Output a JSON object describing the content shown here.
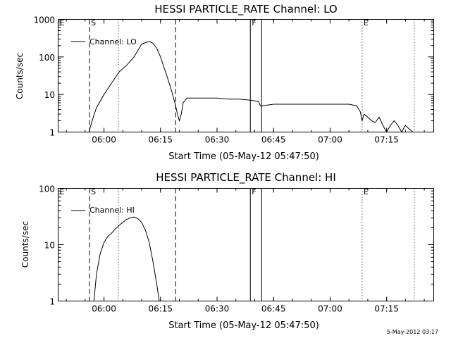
{
  "footer": {
    "timestamp": "5-May-2012 03:17"
  },
  "chart_data": [
    {
      "type": "line",
      "title": "HESSI PARTICLE_RATE Channel: LO",
      "xlabel": "Start Time (05-May-12 05:47:50)",
      "ylabel": "Counts/sec",
      "yscale": "log",
      "xlim": [
        "05:47:50",
        "07:27:30"
      ],
      "ylim": [
        1,
        1000
      ],
      "x_ticks": [
        "06:00",
        "06:15",
        "06:30",
        "06:45",
        "07:00",
        "07:15"
      ],
      "y_ticks": [
        "1",
        "10",
        "100",
        "1000"
      ],
      "legend": {
        "position": "top-left",
        "entry": "Channel: LO"
      },
      "markers": [
        {
          "label": "E",
          "time": "05:47:50",
          "style": "none"
        },
        {
          "label": "S",
          "time": "05:56:10",
          "style": "dashed"
        },
        {
          "label": "",
          "time": "06:03:50",
          "style": "dotted"
        },
        {
          "label": "",
          "time": "06:19:00",
          "style": "dashed"
        },
        {
          "label": "F",
          "time": "06:38:50",
          "style": "solid"
        },
        {
          "label": "",
          "time": "06:41:50",
          "style": "solid"
        },
        {
          "label": "E",
          "time": "07:08:30",
          "style": "dotted"
        },
        {
          "label": "",
          "time": "07:22:20",
          "style": "dotted"
        }
      ],
      "series": [
        {
          "name": "Channel: LO",
          "x": [
            "05:56:00",
            "05:57:00",
            "05:58:00",
            "06:00:00",
            "06:02:00",
            "06:04:00",
            "06:06:00",
            "06:08:00",
            "06:09:00",
            "06:10:00",
            "06:11:00",
            "06:12:00",
            "06:13:00",
            "06:14:00",
            "06:15:00",
            "06:16:00",
            "06:17:00",
            "06:18:00",
            "06:19:00",
            "06:19:30",
            "06:20:00",
            "06:20:30",
            "06:21:00",
            "06:22:00",
            "06:24:00",
            "06:27:00",
            "06:30:00",
            "06:33:00",
            "06:36:00",
            "06:39:00",
            "06:41:00",
            "06:41:30",
            "06:42:00",
            "06:45:00",
            "06:50:00",
            "06:55:00",
            "07:00:00",
            "07:05:00",
            "07:07:00",
            "07:08:00",
            "07:08:30",
            "07:09:00",
            "07:10:00",
            "07:11:00",
            "07:12:00",
            "07:13:00",
            "07:14:00",
            "07:15:00",
            "07:16:00",
            "07:17:00",
            "07:18:00",
            "07:19:00",
            "07:20:00",
            "07:21:00",
            "07:22:00"
          ],
          "y": [
            1,
            2.2,
            4.5,
            10,
            20,
            40,
            60,
            100,
            150,
            220,
            240,
            260,
            230,
            170,
            100,
            50,
            25,
            12,
            5,
            3,
            2,
            3,
            6,
            8,
            8,
            8,
            8,
            7.5,
            7.5,
            7,
            6.5,
            5,
            5,
            5.5,
            5.5,
            5.5,
            5.5,
            5.5,
            5,
            3.5,
            2,
            3,
            2.5,
            2,
            1.8,
            2.5,
            1.5,
            1,
            1.5,
            2,
            1.5,
            1,
            1.5,
            1.2,
            1
          ]
        }
      ]
    },
    {
      "type": "line",
      "title": "HESSI PARTICLE_RATE Channel: HI",
      "xlabel": "Start Time (05-May-12 05:47:50)",
      "ylabel": "Counts/sec",
      "yscale": "log",
      "xlim": [
        "05:47:50",
        "07:27:30"
      ],
      "ylim": [
        1,
        100
      ],
      "x_ticks": [
        "06:00",
        "06:15",
        "06:30",
        "06:45",
        "07:00",
        "07:15"
      ],
      "y_ticks": [
        "1",
        "10",
        "100"
      ],
      "legend": {
        "position": "top-left",
        "entry": "Channel: HI"
      },
      "markers": [
        {
          "label": "E",
          "time": "05:47:50",
          "style": "none"
        },
        {
          "label": "S",
          "time": "05:56:10",
          "style": "dashed"
        },
        {
          "label": "",
          "time": "06:03:50",
          "style": "dotted"
        },
        {
          "label": "",
          "time": "06:19:00",
          "style": "dashed"
        },
        {
          "label": "F",
          "time": "06:38:50",
          "style": "solid"
        },
        {
          "label": "",
          "time": "06:41:50",
          "style": "solid"
        },
        {
          "label": "E",
          "time": "07:08:30",
          "style": "dotted"
        },
        {
          "label": "",
          "time": "07:22:20",
          "style": "dotted"
        }
      ],
      "series": [
        {
          "name": "Channel: HI",
          "x": [
            "05:57:20",
            "05:58:00",
            "05:59:00",
            "06:00:00",
            "06:01:00",
            "06:02:00",
            "06:03:00",
            "06:04:00",
            "06:05:00",
            "06:06:00",
            "06:07:00",
            "06:08:00",
            "06:09:00",
            "06:10:00",
            "06:11:00",
            "06:12:00",
            "06:13:00",
            "06:14:00",
            "06:14:40"
          ],
          "y": [
            1,
            3,
            7,
            11,
            14,
            16,
            19,
            22,
            25,
            28,
            30,
            31,
            29,
            25,
            18,
            11,
            5,
            2,
            1
          ]
        }
      ]
    }
  ]
}
